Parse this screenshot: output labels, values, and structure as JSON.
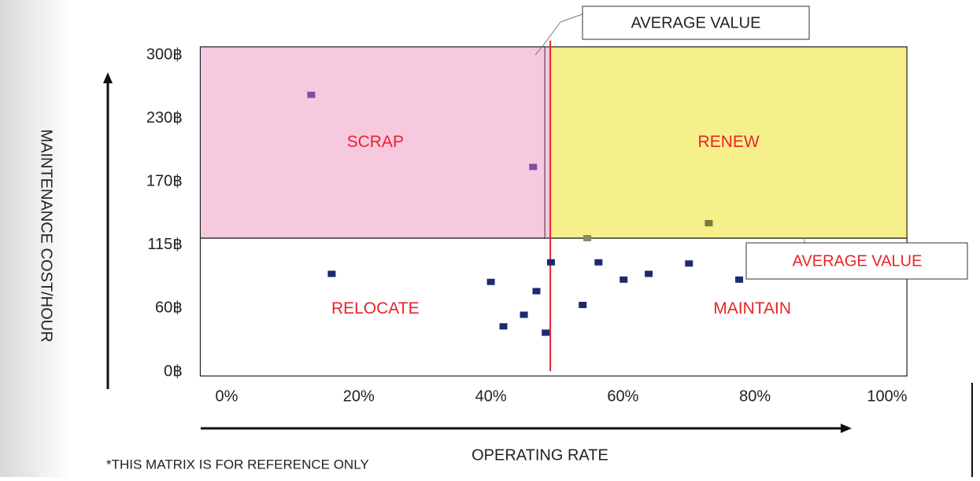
{
  "chart_data": {
    "type": "scatter",
    "x_label": "OPERATING RATE",
    "y_label": "MAINTENANCE COST/HOUR",
    "note": "*THIS MATRIX IS FOR REFERENCE ONLY",
    "quadrants": [
      "SCRAP",
      "RENEW",
      "RELOCATE",
      "MAINTAIN"
    ],
    "quadrant_colors": [
      "#f7c9df",
      "#f5f08a"
    ],
    "quadrant_label_color": "#e8232a",
    "annotations": [
      {
        "text": "AVERAGE VALUE"
      },
      {
        "text": "AVERAGE VALUE"
      }
    ],
    "x_average": 49,
    "y_average": 121,
    "x": [
      12.8,
      46.4,
      73,
      54.6,
      15.9,
      40,
      41.9,
      45,
      46.9,
      48.3,
      49.1,
      53.9,
      56.3,
      60.1,
      63.9,
      70,
      77.6
    ],
    "values": [
      256,
      184,
      134,
      121,
      90,
      83,
      43,
      54,
      75,
      37,
      100,
      63,
      100,
      85,
      90,
      99,
      85
    ],
    "colors": [
      "#7b4fa0",
      "#7b4fa0",
      "#7a7a3a",
      "#8a8a6a",
      "#1f2a6e",
      "#1f2a6e",
      "#1f2a6e",
      "#1f2a6e",
      "#1f2a6e",
      "#1f2a6e",
      "#1f2a6e",
      "#1f2a6e",
      "#1f2a6e",
      "#1f2a6e",
      "#1f2a6e",
      "#1f2a6e",
      "#1f2a6e"
    ],
    "xlim": [
      -4,
      103
    ],
    "ylim": [
      -4,
      309
    ],
    "xticks": [
      {
        "value": 0,
        "label": "0%"
      },
      {
        "value": 20,
        "label": "20%"
      },
      {
        "value": 40,
        "label": "40%"
      },
      {
        "value": 60,
        "label": "60%"
      },
      {
        "value": 80,
        "label": "80%"
      },
      {
        "value": 100,
        "label": "100%"
      }
    ],
    "yticks": [
      {
        "value": 0,
        "label": "0฿"
      },
      {
        "value": 60,
        "label": "60฿"
      },
      {
        "value": 115,
        "label": "115฿"
      },
      {
        "value": 170,
        "label": "170฿"
      },
      {
        "value": 230,
        "label": "230฿"
      },
      {
        "value": 300,
        "label": "300฿"
      }
    ]
  }
}
